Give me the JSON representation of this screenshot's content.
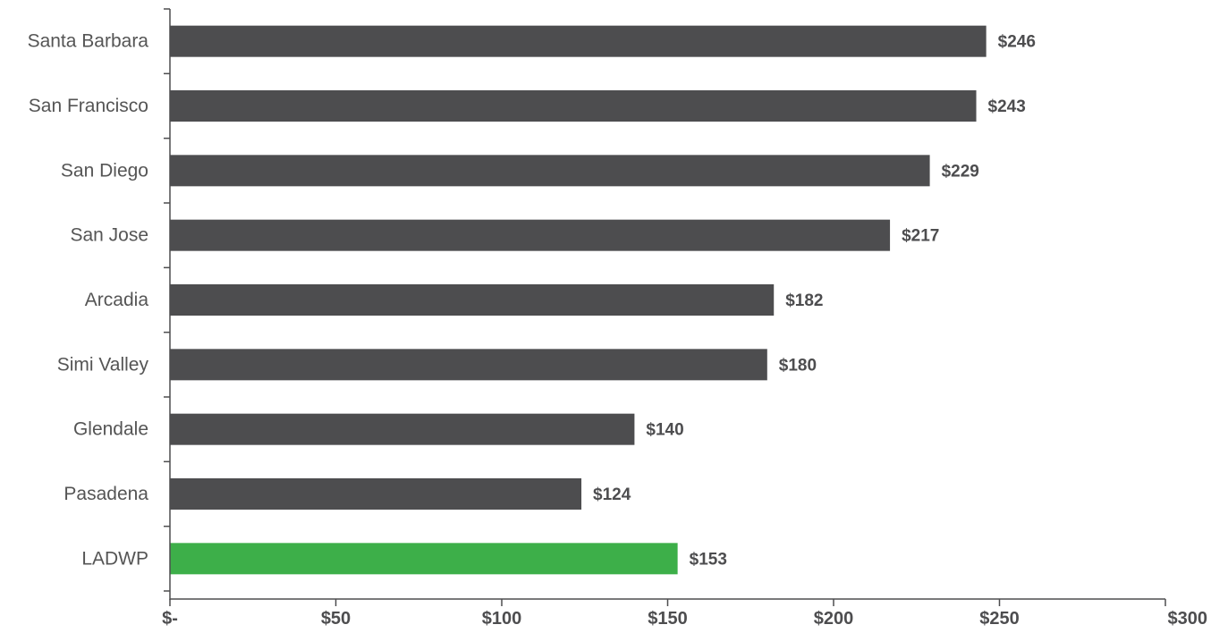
{
  "chart_data": {
    "type": "bar",
    "orientation": "horizontal",
    "categories": [
      "Santa Barbara",
      "San Francisco",
      "San Diego",
      "San Jose",
      "Arcadia",
      "Simi Valley",
      "Glendale",
      "Pasadena",
      "LADWP"
    ],
    "values": [
      246,
      243,
      229,
      217,
      182,
      180,
      140,
      124,
      153
    ],
    "value_labels": [
      "$246",
      "$243",
      "$229",
      "$217",
      "$182",
      "$180",
      "$140",
      "$124",
      "$153"
    ],
    "x_ticks": [
      0,
      50,
      100,
      150,
      200,
      250,
      300
    ],
    "x_tick_labels": [
      "$-",
      "$50",
      "$100",
      "$150",
      "$200",
      "$250",
      "$300"
    ],
    "xlim": [
      0,
      300
    ],
    "title": "",
    "xlabel": "",
    "ylabel": "",
    "grid": false,
    "colors": {
      "default": "#4d4d4f",
      "highlight": "#3daf49",
      "highlight_category": "LADWP"
    }
  }
}
